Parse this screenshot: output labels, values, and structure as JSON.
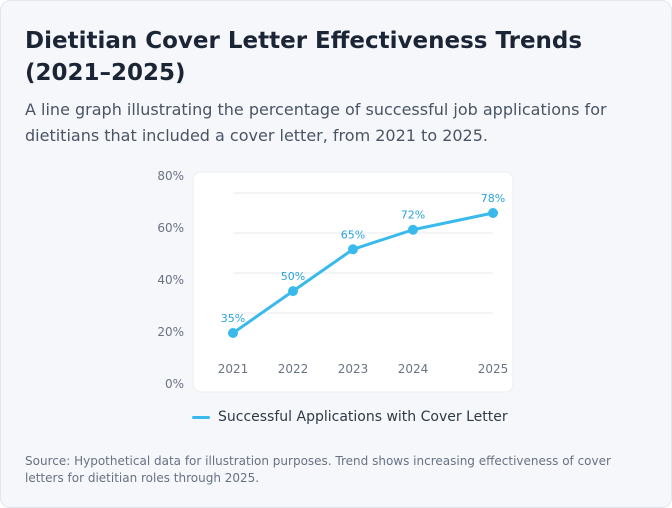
{
  "page": {
    "title": "Dietitian Cover Letter Effectiveness Trends (2021–2025)",
    "subtitle": "A line graph illustrating the percentage of successful job applications for dietitians that included a cover letter, from 2021 to 2025.",
    "source": "Source: Hypothetical data for illustration purposes. Trend shows increasing effectiveness of cover letters for dietitian roles through 2025."
  },
  "colors": {
    "line": "#39b9ec",
    "label": "#2aa3d6",
    "grid": "#e6e8ec",
    "axis_text": "#6a7383"
  },
  "chart_data": {
    "type": "line",
    "title": "",
    "xlabel": "",
    "ylabel": "",
    "x": [
      "2021",
      "2022",
      "2023",
      "2024",
      "2025"
    ],
    "series": [
      {
        "name": "Successful Applications with Cover Letter",
        "values": [
          35,
          50,
          65,
          72,
          78
        ],
        "labels": [
          "35%",
          "50%",
          "65%",
          "72%",
          "78%"
        ]
      }
    ],
    "y_ticks": [
      "0%",
      "20%",
      "40%",
      "60%",
      "80%"
    ],
    "ylim": [
      0,
      80
    ],
    "grid": true,
    "legend": "bottom"
  }
}
